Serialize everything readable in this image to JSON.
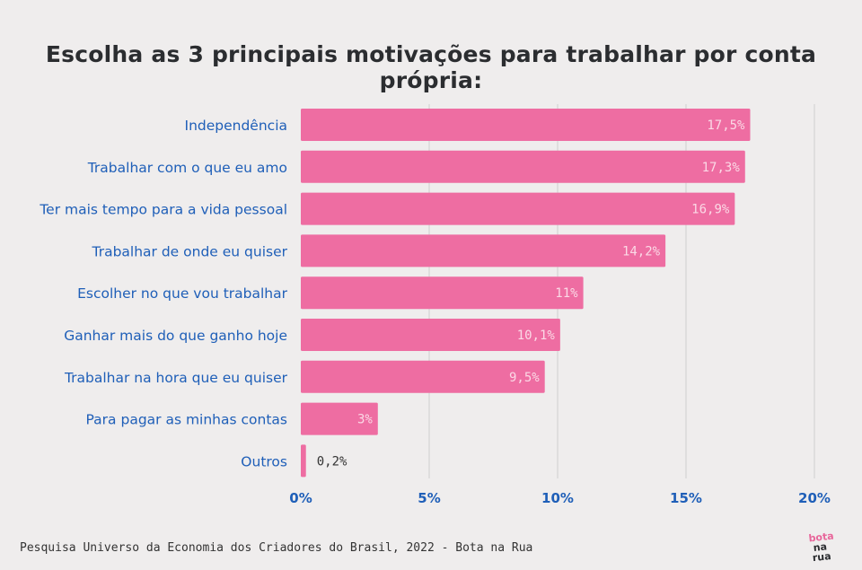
{
  "page": {
    "title": "Escolha as 3 principais motivações para trabalhar por conta própria:",
    "footer": "Pesquisa Universo da Economia dos Criadores do Brasil, 2022 - Bota na Rua",
    "logo": [
      "bota",
      "na",
      "rua"
    ]
  },
  "colors": {
    "bar": "#ee6da2",
    "label": "#1f5fb8",
    "grid": "#cfcfcf",
    "value_inside": "#fbd9e6",
    "value_outside": "#333333",
    "background": "#efeded"
  },
  "chart_data": {
    "type": "bar",
    "orientation": "horizontal",
    "title": "Escolha as 3 principais motivações para trabalhar por conta própria:",
    "categories": [
      "Independência",
      "Trabalhar com o que eu amo",
      "Ter mais tempo para a vida pessoal",
      "Trabalhar de onde eu quiser",
      "Escolher no que vou trabalhar",
      "Ganhar mais do que ganho hoje",
      "Trabalhar na hora que eu quiser",
      "Para pagar as minhas contas",
      "Outros"
    ],
    "values": [
      17.5,
      17.3,
      16.9,
      14.2,
      11,
      10.1,
      9.5,
      3,
      0.2
    ],
    "value_labels": [
      "17,5%",
      "17,3%",
      "16,9%",
      "14,2%",
      "11%",
      "10,1%",
      "9,5%",
      "3%",
      "0,2%"
    ],
    "xlim": [
      0,
      20
    ],
    "xticks": [
      0,
      5,
      10,
      15,
      20
    ],
    "xtick_labels": [
      "0%",
      "5%",
      "10%",
      "15%",
      "20%"
    ],
    "grid": true
  }
}
